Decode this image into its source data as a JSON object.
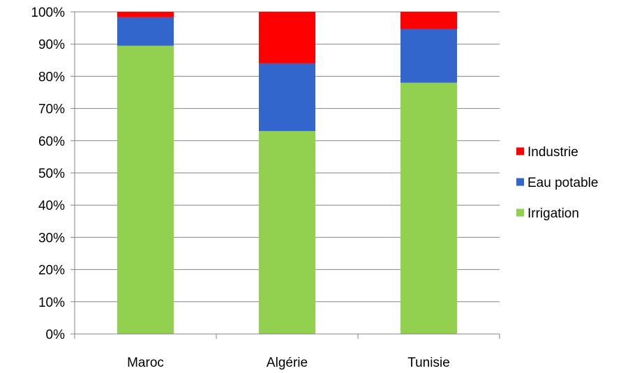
{
  "chart_data": {
    "type": "bar",
    "stacked": true,
    "percent": true,
    "categories": [
      "Maroc",
      "Algérie",
      "Tunisie"
    ],
    "series": [
      {
        "name": "Irrigation",
        "color": "#92D050",
        "values": [
          89.5,
          63.0,
          78.0
        ]
      },
      {
        "name": "Eau potable",
        "color": "#3366CC",
        "values": [
          8.8,
          21.0,
          16.7
        ]
      },
      {
        "name": "Industrie",
        "color": "#FF0000",
        "values": [
          1.7,
          16.0,
          5.3
        ]
      }
    ],
    "ylim": [
      0,
      100
    ],
    "yticks": [
      "0%",
      "10%",
      "20%",
      "30%",
      "40%",
      "50%",
      "60%",
      "70%",
      "80%",
      "90%",
      "100%"
    ],
    "grid": true,
    "legend_position": "right"
  }
}
